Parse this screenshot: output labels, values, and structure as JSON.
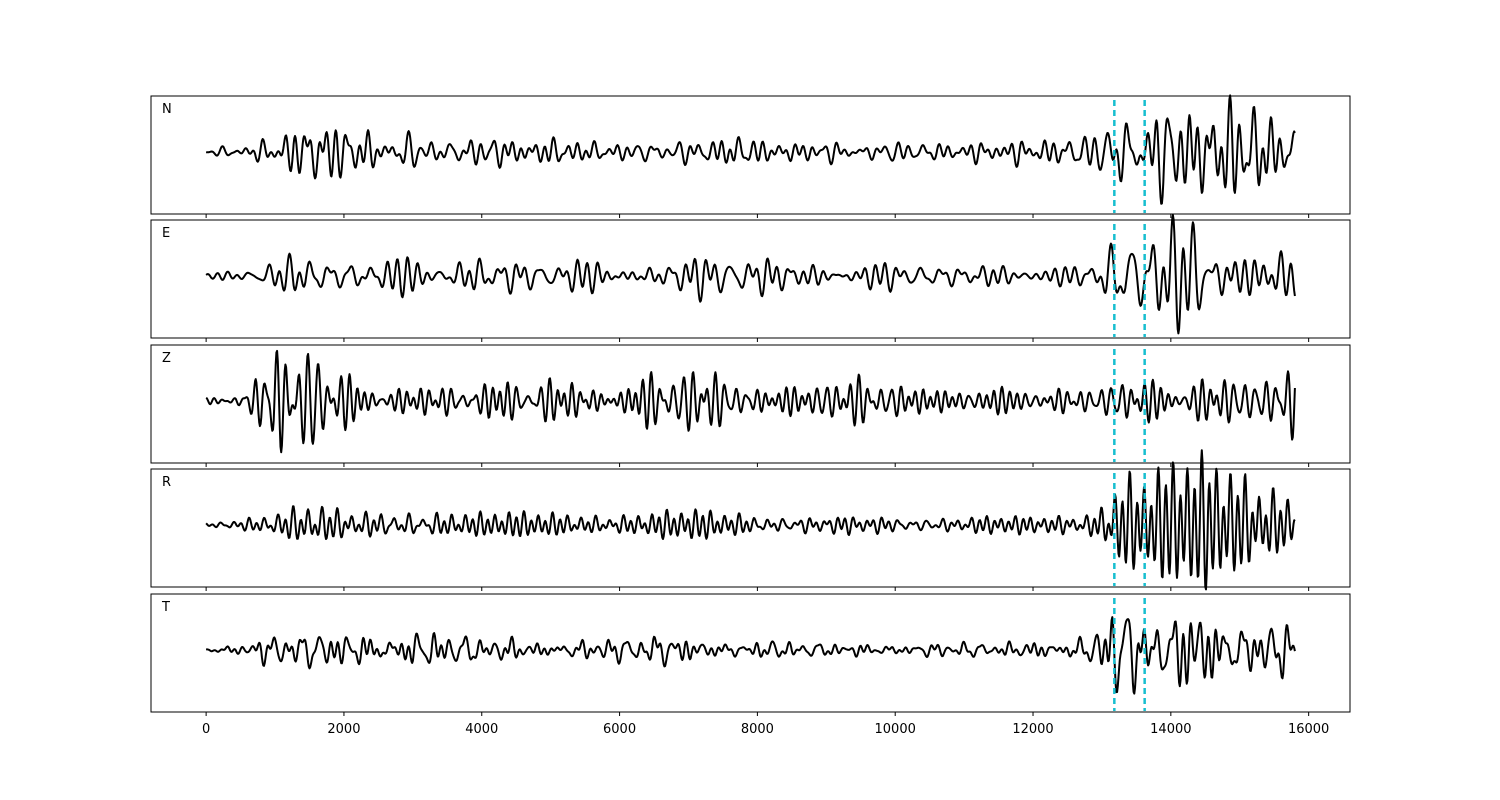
{
  "chart_data": {
    "type": "line",
    "xlim": [
      -800,
      16600
    ],
    "x_ticks": [
      "0",
      "2000",
      "4000",
      "6000",
      "8000",
      "10000",
      "12000",
      "14000",
      "16000"
    ],
    "x_tick_values": [
      0,
      2000,
      4000,
      6000,
      8000,
      10000,
      12000,
      14000,
      16000
    ],
    "sample_count": 15800,
    "marker_lines": [
      13180,
      13620
    ],
    "marker_color": "#17becf",
    "trace_color": "#000000",
    "y_ticks_visible": false,
    "grid": false,
    "panels": [
      {
        "label": "N",
        "envelope": [
          [
            0,
            0.06
          ],
          [
            500,
            0.12
          ],
          [
            1000,
            0.25
          ],
          [
            1500,
            0.5
          ],
          [
            2000,
            0.45
          ],
          [
            2500,
            0.32
          ],
          [
            3000,
            0.3
          ],
          [
            4000,
            0.25
          ],
          [
            5000,
            0.2
          ],
          [
            6000,
            0.17
          ],
          [
            7000,
            0.22
          ],
          [
            7600,
            0.3
          ],
          [
            8000,
            0.18
          ],
          [
            9000,
            0.16
          ],
          [
            10000,
            0.2
          ],
          [
            11000,
            0.15
          ],
          [
            12000,
            0.2
          ],
          [
            12800,
            0.32
          ],
          [
            13100,
            0.55
          ],
          [
            13300,
            0.85
          ],
          [
            13600,
            0.8
          ],
          [
            14000,
            0.75
          ],
          [
            14300,
            0.85
          ],
          [
            14800,
            0.8
          ],
          [
            15200,
            0.75
          ],
          [
            15800,
            0.55
          ]
        ]
      },
      {
        "label": "E",
        "envelope": [
          [
            0,
            0.06
          ],
          [
            500,
            0.12
          ],
          [
            1000,
            0.25
          ],
          [
            1500,
            0.28
          ],
          [
            2000,
            0.3
          ],
          [
            2800,
            0.35
          ],
          [
            3500,
            0.3
          ],
          [
            5000,
            0.25
          ],
          [
            6500,
            0.3
          ],
          [
            7500,
            0.32
          ],
          [
            8500,
            0.3
          ],
          [
            9500,
            0.22
          ],
          [
            10500,
            0.2
          ],
          [
            12000,
            0.16
          ],
          [
            12800,
            0.22
          ],
          [
            13100,
            0.55
          ],
          [
            13300,
            0.8
          ],
          [
            13600,
            0.7
          ],
          [
            14000,
            0.75
          ],
          [
            14300,
            0.95
          ],
          [
            14800,
            0.7
          ],
          [
            15200,
            0.6
          ],
          [
            15800,
            0.45
          ]
        ]
      },
      {
        "label": "Z",
        "envelope": [
          [
            0,
            0.06
          ],
          [
            400,
            0.12
          ],
          [
            700,
            0.45
          ],
          [
            1000,
            0.85
          ],
          [
            1300,
            0.5
          ],
          [
            1600,
            0.95
          ],
          [
            1800,
            0.45
          ],
          [
            2500,
            0.35
          ],
          [
            4000,
            0.3
          ],
          [
            5000,
            0.4
          ],
          [
            6000,
            0.45
          ],
          [
            7000,
            0.42
          ],
          [
            8000,
            0.35
          ],
          [
            9000,
            0.3
          ],
          [
            10000,
            0.38
          ],
          [
            11000,
            0.3
          ],
          [
            12000,
            0.22
          ],
          [
            12800,
            0.2
          ],
          [
            13100,
            0.3
          ],
          [
            13300,
            0.42
          ],
          [
            13600,
            0.35
          ],
          [
            14000,
            0.38
          ],
          [
            14500,
            0.35
          ],
          [
            15200,
            0.35
          ],
          [
            15600,
            0.4
          ],
          [
            15800,
            0.7
          ]
        ]
      },
      {
        "label": "R",
        "envelope": [
          [
            0,
            0.06
          ],
          [
            500,
            0.12
          ],
          [
            1000,
            0.25
          ],
          [
            1500,
            0.45
          ],
          [
            2000,
            0.3
          ],
          [
            2500,
            0.3
          ],
          [
            3000,
            0.32
          ],
          [
            4000,
            0.2
          ],
          [
            5000,
            0.2
          ],
          [
            6000,
            0.2
          ],
          [
            7000,
            0.25
          ],
          [
            8000,
            0.2
          ],
          [
            9000,
            0.2
          ],
          [
            10000,
            0.18
          ],
          [
            11000,
            0.17
          ],
          [
            12000,
            0.15
          ],
          [
            12800,
            0.22
          ],
          [
            13100,
            0.55
          ],
          [
            13300,
            0.85
          ],
          [
            13600,
            0.7
          ],
          [
            14000,
            0.8
          ],
          [
            14300,
            0.9
          ],
          [
            14800,
            0.9
          ],
          [
            15200,
            0.75
          ],
          [
            15800,
            0.5
          ]
        ]
      },
      {
        "label": "T",
        "envelope": [
          [
            0,
            0.06
          ],
          [
            500,
            0.1
          ],
          [
            1000,
            0.25
          ],
          [
            1500,
            0.3
          ],
          [
            2000,
            0.28
          ],
          [
            2800,
            0.32
          ],
          [
            3500,
            0.25
          ],
          [
            5000,
            0.15
          ],
          [
            6000,
            0.18
          ],
          [
            6500,
            0.28
          ],
          [
            7500,
            0.15
          ],
          [
            9000,
            0.12
          ],
          [
            10500,
            0.1
          ],
          [
            12000,
            0.15
          ],
          [
            12800,
            0.22
          ],
          [
            13100,
            0.55
          ],
          [
            13300,
            0.75
          ],
          [
            13600,
            0.6
          ],
          [
            14000,
            0.55
          ],
          [
            14300,
            1.0
          ],
          [
            14800,
            0.5
          ],
          [
            15200,
            0.45
          ],
          [
            15600,
            0.4
          ],
          [
            15800,
            0.3
          ]
        ]
      }
    ]
  }
}
